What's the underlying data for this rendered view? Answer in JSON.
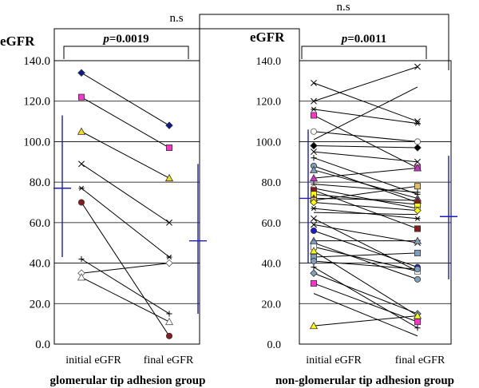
{
  "chart_data": {
    "type": "scatter",
    "comparison": {
      "label": "n.s"
    },
    "colors": {
      "axis": "#000000",
      "grid": "#000000",
      "line": "#000000",
      "mean_sd": "#1a1acc"
    },
    "panels": [
      {
        "title": "glomerular tip adhesion group",
        "ylabel": "eGFR",
        "ylim": [
          0,
          140
        ],
        "yticks": [
          "0.0",
          "20.0",
          "40.0",
          "60.0",
          "80.0",
          "100.0",
          "120.0",
          "140.0"
        ],
        "categories": [
          "initial eGFR",
          "final eGFR"
        ],
        "pvalue_prefix": "p",
        "pvalue_text": "=0.0019",
        "mean_sd": [
          {
            "mean": 77,
            "low": 43,
            "high": 113
          },
          {
            "mean": 51,
            "low": 15,
            "high": 89
          }
        ],
        "series": [
          {
            "initial": 134,
            "final": 108,
            "marker": "diamond",
            "color": "#0d1a8c"
          },
          {
            "initial": 122,
            "final": 97,
            "marker": "square",
            "color": "#ff33cc"
          },
          {
            "initial": 105,
            "final": 82,
            "marker": "triangle",
            "color": "#f0dc1e"
          },
          {
            "initial": 89,
            "final": 60,
            "marker": "x",
            "color": "#000000"
          },
          {
            "initial": 77,
            "final": 43,
            "marker": "star",
            "color": "#000000"
          },
          {
            "initial": 70,
            "final": 4,
            "marker": "circle",
            "color": "#8b1a1a"
          },
          {
            "initial": 42,
            "final": 15,
            "marker": "plus",
            "color": "#000000"
          },
          {
            "initial": 35,
            "final": 40,
            "marker": "diamond",
            "color": "#ffffff"
          },
          {
            "initial": 33,
            "final": 11,
            "marker": "triangle",
            "color": "#ffffff"
          }
        ]
      },
      {
        "title": "non-glomerular tip adhesion group",
        "ylabel": "eGFR",
        "ylim": [
          0,
          140
        ],
        "yticks": [
          "0.0",
          "20.0",
          "40.0",
          "60.0",
          "80.0",
          "100.0",
          "120.0",
          "140.0"
        ],
        "categories": [
          "initial eGFR",
          "final eGFR"
        ],
        "pvalue_prefix": "p",
        "pvalue_text": "=0.0011",
        "mean_sd": [
          {
            "mean": 72,
            "low": 40,
            "high": 106
          },
          {
            "mean": 63,
            "low": 32,
            "high": 93
          }
        ],
        "series": [
          {
            "initial": 129,
            "final": 110,
            "marker": "x",
            "color": "#000000"
          },
          {
            "initial": 120,
            "final": 137,
            "marker": "x",
            "color": "#000000"
          },
          {
            "initial": 116,
            "final": 109,
            "marker": "star",
            "color": "#000000"
          },
          {
            "initial": 113,
            "final": 87,
            "marker": "square",
            "color": "#ff33cc"
          },
          {
            "initial": 105,
            "final": 100,
            "marker": "circle",
            "color": "#ffffff"
          },
          {
            "initial": 101,
            "final": 127,
            "marker": "none",
            "color": "#000000"
          },
          {
            "initial": 98,
            "final": 97,
            "marker": "diamond",
            "color": "#000000"
          },
          {
            "initial": 95,
            "final": 90,
            "marker": "x",
            "color": "#000000"
          },
          {
            "initial": 92,
            "final": 74,
            "marker": "plus",
            "color": "#000000"
          },
          {
            "initial": 88,
            "final": 70,
            "marker": "circle",
            "color": "#7f9fbf"
          },
          {
            "initial": 86,
            "final": 72,
            "marker": "triangle",
            "color": "#7f9fbf"
          },
          {
            "initial": 82,
            "final": 87,
            "marker": "triangle",
            "color": "#cc33cc"
          },
          {
            "initial": 79,
            "final": 75,
            "marker": "plus",
            "color": "#000000"
          },
          {
            "initial": 77,
            "final": 67,
            "marker": "circle",
            "color": "#ffffff"
          },
          {
            "initial": 76,
            "final": 57,
            "marker": "square",
            "color": "#8b1a1a"
          },
          {
            "initial": 74,
            "final": 69,
            "marker": "square",
            "color": "#ffff00"
          },
          {
            "initial": 72,
            "final": 71,
            "marker": "triangle",
            "color": "#8b1a1a"
          },
          {
            "initial": 71,
            "final": 78,
            "marker": "square",
            "color": "#e0c060"
          },
          {
            "initial": 70,
            "final": 66,
            "marker": "diamond",
            "color": "#ffff00"
          },
          {
            "initial": 67,
            "final": 62,
            "marker": "star",
            "color": "#000000"
          },
          {
            "initial": 65,
            "final": 64,
            "marker": "none",
            "color": "#000000"
          },
          {
            "initial": 62,
            "final": 36,
            "marker": "x",
            "color": "#000000"
          },
          {
            "initial": 59,
            "final": 50,
            "marker": "x",
            "color": "#000000"
          },
          {
            "initial": 56,
            "final": 38,
            "marker": "circle",
            "color": "#1a1acc"
          },
          {
            "initial": 51,
            "final": 51,
            "marker": "triangle",
            "color": "#7f9fbf"
          },
          {
            "initial": 50,
            "final": 32,
            "marker": "circle",
            "color": "#7f9fbf"
          },
          {
            "initial": 48,
            "final": 36,
            "marker": "square",
            "color": "#ffffff"
          },
          {
            "initial": 46,
            "final": 14,
            "marker": "triangle",
            "color": "#ffff00"
          },
          {
            "initial": 43,
            "final": 45,
            "marker": "square",
            "color": "#7f9fbf"
          },
          {
            "initial": 41,
            "final": 37,
            "marker": "circle",
            "color": "#7f9fbf"
          },
          {
            "initial": 38,
            "final": 8,
            "marker": "plus",
            "color": "#000000"
          },
          {
            "initial": 35,
            "final": 15,
            "marker": "diamond",
            "color": "#7f9fbf"
          },
          {
            "initial": 30,
            "final": 11,
            "marker": "square",
            "color": "#ff33cc"
          },
          {
            "initial": 25,
            "final": 4,
            "marker": "none",
            "color": "#000000"
          },
          {
            "initial": 9,
            "final": 14,
            "marker": "triangle",
            "color": "#ffff00"
          }
        ]
      }
    ]
  }
}
